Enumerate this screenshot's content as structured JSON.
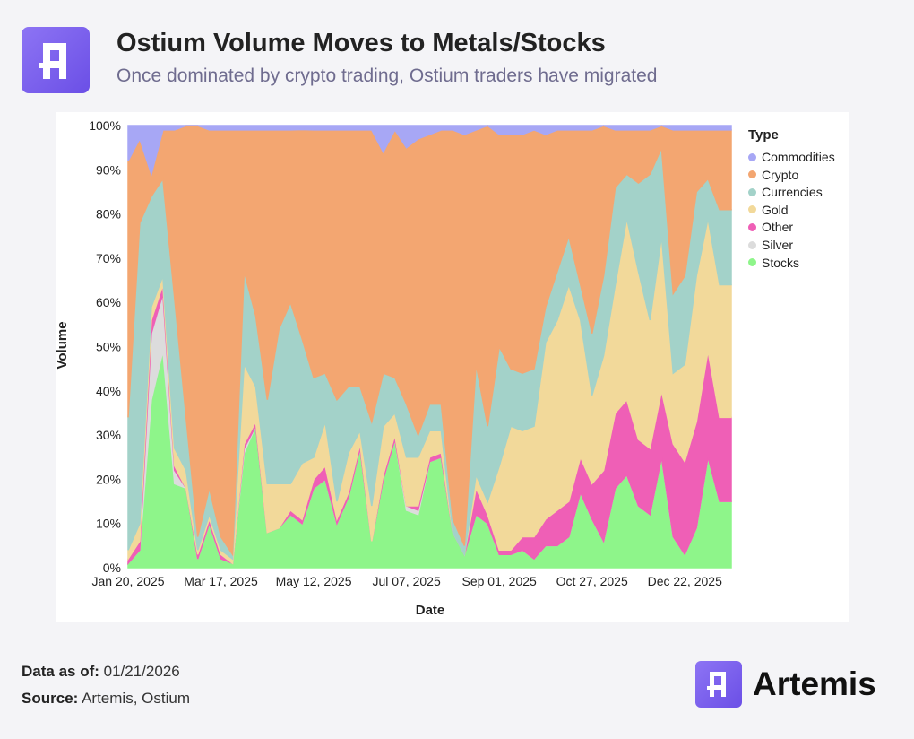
{
  "header": {
    "title": "Ostium Volume Moves to Metals/Stocks",
    "subtitle": "Once dominated by crypto trading, Ostium traders have migrated"
  },
  "footer": {
    "data_as_of_label": "Data as of:",
    "data_as_of_value": " 01/21/2026",
    "source_label": "Source:",
    "source_value": " Artemis, Ostium",
    "brand_name": "Artemis"
  },
  "chart_data": {
    "type": "area",
    "stacked": "percent",
    "xlabel": "Date",
    "ylabel": "Volume",
    "ylim": [
      0,
      100
    ],
    "y_ticks": [
      "0%",
      "10%",
      "20%",
      "30%",
      "40%",
      "50%",
      "60%",
      "70%",
      "80%",
      "90%",
      "100%"
    ],
    "x_ticks": [
      "Jan 20, 2025",
      "Mar 17, 2025",
      "May 12, 2025",
      "Jul 07, 2025",
      "Sep 01, 2025",
      "Oct 27, 2025",
      "Dec 22, 2025"
    ],
    "x_tick_dates": [
      "2025-01-20",
      "2025-03-17",
      "2025-05-12",
      "2025-07-07",
      "2025-09-01",
      "2025-10-27",
      "2025-12-22"
    ],
    "x": [
      "2025-01-20",
      "2025-01-27",
      "2025-02-03",
      "2025-02-10",
      "2025-02-17",
      "2025-02-24",
      "2025-03-03",
      "2025-03-10",
      "2025-03-17",
      "2025-03-24",
      "2025-03-31",
      "2025-04-07",
      "2025-04-14",
      "2025-04-21",
      "2025-04-28",
      "2025-05-05",
      "2025-05-12",
      "2025-05-19",
      "2025-05-26",
      "2025-06-02",
      "2025-06-09",
      "2025-06-16",
      "2025-06-23",
      "2025-06-30",
      "2025-07-07",
      "2025-07-14",
      "2025-07-21",
      "2025-07-28",
      "2025-08-04",
      "2025-08-11",
      "2025-08-18",
      "2025-08-25",
      "2025-09-01",
      "2025-09-08",
      "2025-09-15",
      "2025-09-22",
      "2025-09-29",
      "2025-10-06",
      "2025-10-13",
      "2025-10-20",
      "2025-10-27",
      "2025-11-03",
      "2025-11-10",
      "2025-11-17",
      "2025-11-24",
      "2025-12-01",
      "2025-12-08",
      "2025-12-15",
      "2025-12-22",
      "2025-12-29",
      "2026-01-05",
      "2026-01-12",
      "2026-01-19"
    ],
    "legend_title": "Type",
    "legend_position": "right",
    "series": [
      {
        "name": "Stocks",
        "color": "#8ef58a",
        "values": [
          1,
          4,
          38,
          49,
          19,
          18,
          2,
          10,
          2,
          1,
          26,
          32,
          8,
          9,
          12,
          11,
          18,
          20,
          10,
          16,
          27,
          6,
          20,
          29,
          13,
          12,
          24,
          25,
          8,
          3,
          12,
          10,
          3,
          3,
          4,
          2,
          5,
          5,
          7,
          17,
          11,
          6,
          18,
          21,
          14,
          12,
          25,
          7,
          3,
          9,
          25,
          15,
          15
        ]
      },
      {
        "name": "Silver",
        "color": "#dcdcdc",
        "values": [
          0,
          0,
          15,
          13,
          3,
          0,
          0,
          0,
          0,
          0,
          1,
          0,
          0,
          0,
          0,
          0,
          0,
          0,
          0,
          0,
          0,
          0,
          0,
          0,
          1,
          1,
          0,
          0,
          0,
          0,
          0,
          0,
          0,
          0,
          0,
          0,
          0,
          0,
          0,
          0,
          0,
          0,
          0,
          0,
          0,
          0,
          0,
          0,
          0,
          0,
          0,
          0,
          0
        ]
      },
      {
        "name": "Other",
        "color": "#ef5fb6",
        "values": [
          1,
          2,
          3,
          2,
          1,
          0,
          1,
          1,
          1,
          0,
          1,
          1,
          0,
          0,
          1,
          1,
          2,
          3,
          1,
          1,
          1,
          0,
          1,
          1,
          0,
          1,
          1,
          1,
          0,
          0,
          6,
          2,
          1,
          1,
          3,
          5,
          6,
          8,
          8,
          8,
          8,
          16,
          17,
          17,
          15,
          15,
          15,
          21,
          21,
          24,
          24,
          19,
          19
        ]
      },
      {
        "name": "Gold",
        "color": "#f2d99a",
        "values": [
          2,
          4,
          3,
          2,
          4,
          4,
          1,
          1,
          1,
          1,
          18,
          8,
          11,
          10,
          6,
          14,
          5,
          10,
          4,
          9,
          3,
          8,
          11,
          5,
          11,
          11,
          6,
          5,
          0,
          0,
          3,
          3,
          19,
          28,
          24,
          25,
          40,
          43,
          49,
          31,
          20,
          26,
          29,
          41,
          38,
          29,
          35,
          16,
          22,
          33,
          30,
          30,
          30
        ]
      },
      {
        "name": "Currencies",
        "color": "#a3d2c9",
        "values": [
          30,
          68,
          25,
          22,
          34,
          12,
          3,
          6,
          3,
          1,
          21,
          16,
          19,
          35,
          41,
          31,
          18,
          11,
          23,
          15,
          10,
          19,
          12,
          8,
          12,
          5,
          6,
          6,
          3,
          2,
          25,
          17,
          27,
          13,
          13,
          13,
          8,
          11,
          11,
          8,
          14,
          18,
          22,
          10,
          20,
          33,
          20,
          18,
          20,
          19,
          9,
          17,
          17
        ]
      },
      {
        "name": "Crypto",
        "color": "#f3a671",
        "values": [
          58,
          19,
          5,
          11,
          38,
          66,
          93,
          81,
          92,
          96,
          32,
          42,
          61,
          45,
          39,
          52,
          56,
          55,
          61,
          58,
          58,
          66,
          50,
          56,
          58,
          67,
          61,
          62,
          88,
          93,
          53,
          68,
          48,
          53,
          54,
          54,
          39,
          32,
          24,
          35,
          46,
          34,
          13,
          10,
          12,
          10,
          5,
          37,
          33,
          14,
          11,
          18,
          18
        ]
      },
      {
        "name": "Commodities",
        "color": "#a7a7f5",
        "values": [
          8,
          3,
          11,
          1,
          1,
          0,
          0,
          1,
          1,
          1,
          1,
          1,
          1,
          1,
          1,
          1,
          1,
          1,
          1,
          1,
          1,
          1,
          6,
          1,
          5,
          3,
          2,
          1,
          1,
          2,
          1,
          0,
          2,
          2,
          2,
          1,
          2,
          1,
          1,
          1,
          1,
          0,
          1,
          1,
          1,
          1,
          0,
          1,
          1,
          1,
          1,
          1,
          1
        ]
      }
    ]
  }
}
